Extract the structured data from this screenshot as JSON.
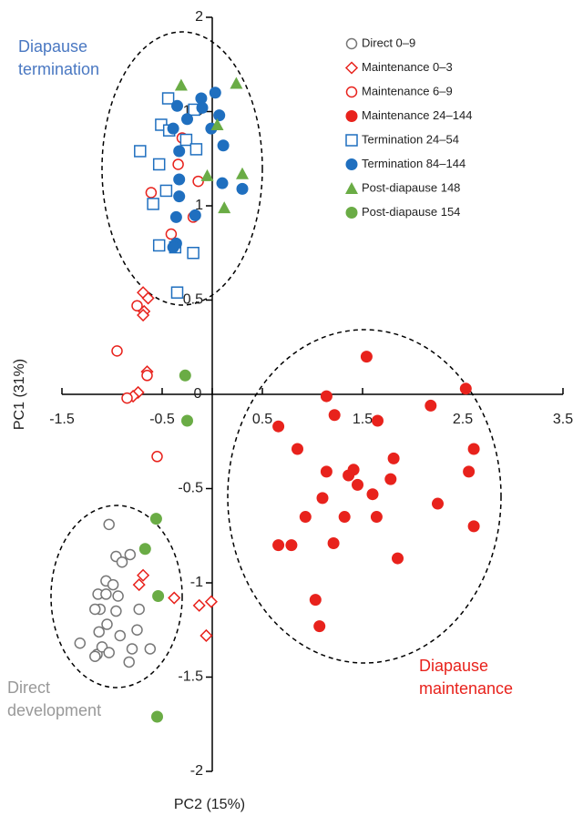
{
  "chart_data": {
    "type": "scatter",
    "x_label": "PC2 (15%)",
    "y_label": "PC1 (31%)",
    "xlim": [
      -1.5,
      3.5
    ],
    "ylim": [
      -2,
      2
    ],
    "xticks": [
      -1.5,
      -0.5,
      0,
      0.5,
      1.5,
      2.5,
      3.5
    ],
    "yticks": [
      2,
      1.5,
      1,
      0.5,
      -0.5,
      -1,
      -1.5,
      -2
    ],
    "annotations": [
      {
        "lines": [
          "Diapause",
          "termination"
        ],
        "color": "#4a78c2"
      },
      {
        "lines": [
          "Diapause",
          "maintenance"
        ],
        "color": "#e8221c"
      },
      {
        "lines": [
          "Direct",
          "development"
        ],
        "color": "#999999"
      }
    ],
    "series": [
      {
        "name": "Direct 0–9",
        "color": "#777777",
        "marker": "circle-open",
        "x": [
          -1.03,
          -0.96,
          -0.9,
          -0.82,
          -1.06,
          -0.99,
          -1.14,
          -1.06,
          -0.94,
          -1.12,
          -1.17,
          -0.96,
          -1.13,
          -1.05,
          -0.92,
          -0.75,
          -0.73,
          -1.32,
          -1.15,
          -1.1,
          -0.8,
          -0.62,
          -1.03,
          -0.83,
          -1.17
        ],
        "values": [
          -0.69,
          -0.86,
          -0.89,
          -0.85,
          -0.99,
          -1.01,
          -1.06,
          -1.06,
          -1.07,
          -1.14,
          -1.14,
          -1.15,
          -1.26,
          -1.22,
          -1.28,
          -1.25,
          -1.14,
          -1.32,
          -1.38,
          -1.34,
          -1.35,
          -1.35,
          -1.37,
          -1.42,
          -1.39
        ]
      },
      {
        "name": "Maintenance 0–3",
        "color": "#e8221c",
        "marker": "diamond-open",
        "x": [
          -0.69,
          -0.64,
          -0.68,
          -0.69,
          -0.65,
          -0.74,
          -0.79,
          -0.69,
          -0.73,
          -0.38,
          -0.13,
          -0.01,
          -0.06
        ],
        "values": [
          0.54,
          0.51,
          0.44,
          0.42,
          0.12,
          0.01,
          -0.01,
          -0.96,
          -1.01,
          -1.08,
          -1.12,
          -1.1,
          -1.28
        ]
      },
      {
        "name": "Maintenance 6–9",
        "color": "#e8221c",
        "marker": "circle-open",
        "x": [
          -0.3,
          -0.34,
          -0.14,
          -0.61,
          -0.19,
          -0.41,
          -0.75,
          -0.95,
          -0.65,
          -0.85,
          -0.55
        ],
        "values": [
          1.36,
          1.22,
          1.13,
          1.07,
          0.94,
          0.85,
          0.47,
          0.23,
          0.1,
          -0.02,
          -0.33
        ]
      },
      {
        "name": "Maintenance 24–144",
        "color": "#e8221c",
        "marker": "circle",
        "x": [
          1.54,
          2.53,
          0.66,
          1.14,
          1.22,
          1.65,
          2.18,
          0.85,
          2.61,
          1.81,
          1.14,
          1.36,
          1.41,
          1.45,
          1.78,
          2.56,
          1.1,
          1.6,
          2.25,
          0.93,
          1.32,
          1.64,
          2.61,
          0.66,
          0.79,
          1.21,
          1.85,
          1.03,
          1.07
        ],
        "values": [
          0.2,
          0.03,
          -0.17,
          -0.01,
          -0.11,
          -0.14,
          -0.06,
          -0.29,
          -0.29,
          -0.34,
          -0.41,
          -0.43,
          -0.4,
          -0.48,
          -0.45,
          -0.41,
          -0.55,
          -0.53,
          -0.58,
          -0.65,
          -0.65,
          -0.65,
          -0.7,
          -0.8,
          -0.8,
          -0.79,
          -0.87,
          -1.09,
          -1.23
        ]
      },
      {
        "name": "Termination 24–54",
        "color": "#1f6fbf",
        "marker": "square-open",
        "x": [
          -0.44,
          -0.18,
          -0.51,
          -0.26,
          -0.43,
          -0.72,
          -0.53,
          -0.16,
          -0.46,
          -0.59,
          -0.53,
          -0.37,
          -0.19,
          -0.35
        ],
        "values": [
          1.57,
          1.51,
          1.43,
          1.35,
          1.4,
          1.29,
          1.22,
          1.3,
          1.08,
          1.01,
          0.79,
          0.78,
          0.75,
          0.54
        ]
      },
      {
        "name": "Termination 84–144",
        "color": "#1f6fbf",
        "marker": "circle",
        "x": [
          0.03,
          -0.11,
          -0.1,
          -0.25,
          -0.35,
          -0.01,
          0.07,
          -0.39,
          -0.33,
          0.11,
          -0.33,
          0.1,
          0.3,
          -0.33,
          -0.17,
          -0.36,
          -0.36,
          -0.39
        ],
        "values": [
          1.6,
          1.57,
          1.52,
          1.46,
          1.53,
          1.41,
          1.48,
          1.41,
          1.29,
          1.32,
          1.14,
          1.12,
          1.09,
          1.05,
          0.95,
          0.94,
          0.8,
          0.78
        ]
      },
      {
        "name": "Post-diapause 148",
        "color": "#6aac45",
        "marker": "triangle",
        "x": [
          -0.31,
          0.24,
          0.05,
          -0.05,
          0.3,
          0.12
        ],
        "values": [
          1.64,
          1.65,
          1.43,
          1.16,
          1.17,
          0.99
        ]
      },
      {
        "name": "Post-diapause 154",
        "color": "#6aac45",
        "marker": "circle",
        "x": [
          -0.27,
          -0.25,
          -0.56,
          -0.67,
          -0.54,
          -0.55
        ],
        "values": [
          0.1,
          -0.14,
          -0.66,
          -0.82,
          -1.07,
          -1.71
        ]
      }
    ]
  }
}
